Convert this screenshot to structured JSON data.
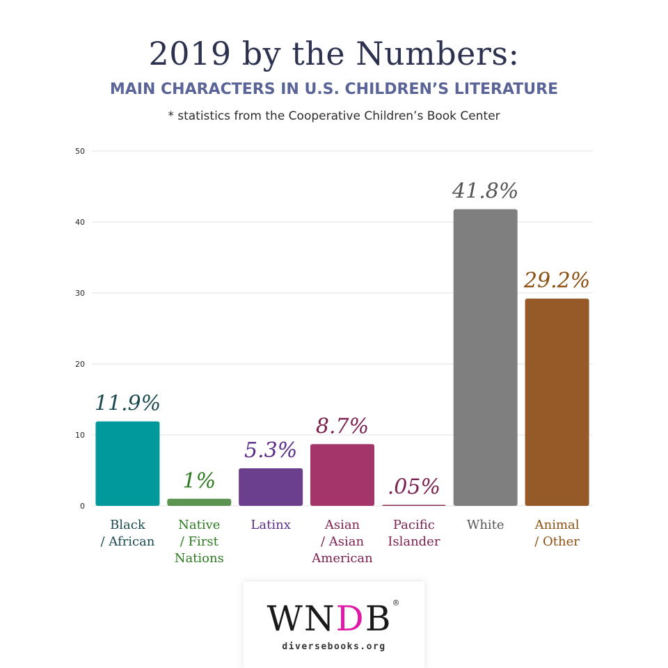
{
  "title": "2019 by the Numbers:",
  "subtitle": "MAIN CHARACTERS IN U.S. CHILDREN’S LITERATURE",
  "note": "* statistics from the Cooperative Children’s Book Center",
  "logo": {
    "main_prefix": "WN",
    "main_accent": "D",
    "main_suffix": "B",
    "registered": "®",
    "url": "diversebooks.org",
    "accent_color": "#e01aa8"
  },
  "chart_data": {
    "type": "bar",
    "ylim": [
      0,
      50
    ],
    "yticks": [
      0,
      10,
      20,
      30,
      40,
      50
    ],
    "grid": true,
    "legend": "none",
    "categories": [
      {
        "lines": [
          "Black",
          "/ African"
        ],
        "value": 11.9,
        "label": "11.9%",
        "color": "#02999c",
        "text_color": "#1a4a4e"
      },
      {
        "lines": [
          "Native",
          "/ First",
          "Nations"
        ],
        "value": 1,
        "label": "1%",
        "color": "#5b9450",
        "text_color": "#2c7a1f"
      },
      {
        "lines": [
          "Latinx"
        ],
        "value": 5.3,
        "label": "5.3%",
        "color": "#6b3f8c",
        "text_color": "#5a2d8a"
      },
      {
        "lines": [
          "Asian",
          "/ Asian",
          "American"
        ],
        "value": 8.7,
        "label": "8.7%",
        "color": "#a3356a",
        "text_color": "#7a1f4e"
      },
      {
        "lines": [
          "Pacific",
          "Islander"
        ],
        "value": 0.05,
        "label": ".05%",
        "color": "#8a2a52",
        "text_color": "#7a1f4e"
      },
      {
        "lines": [
          "White"
        ],
        "value": 41.8,
        "label": "41.8%",
        "color": "#7f7f7f",
        "text_color": "#555555"
      },
      {
        "lines": [
          "Animal",
          "/ Other"
        ],
        "value": 29.2,
        "label": "29.2%",
        "color": "#965a28",
        "text_color": "#8a4f10"
      }
    ]
  }
}
